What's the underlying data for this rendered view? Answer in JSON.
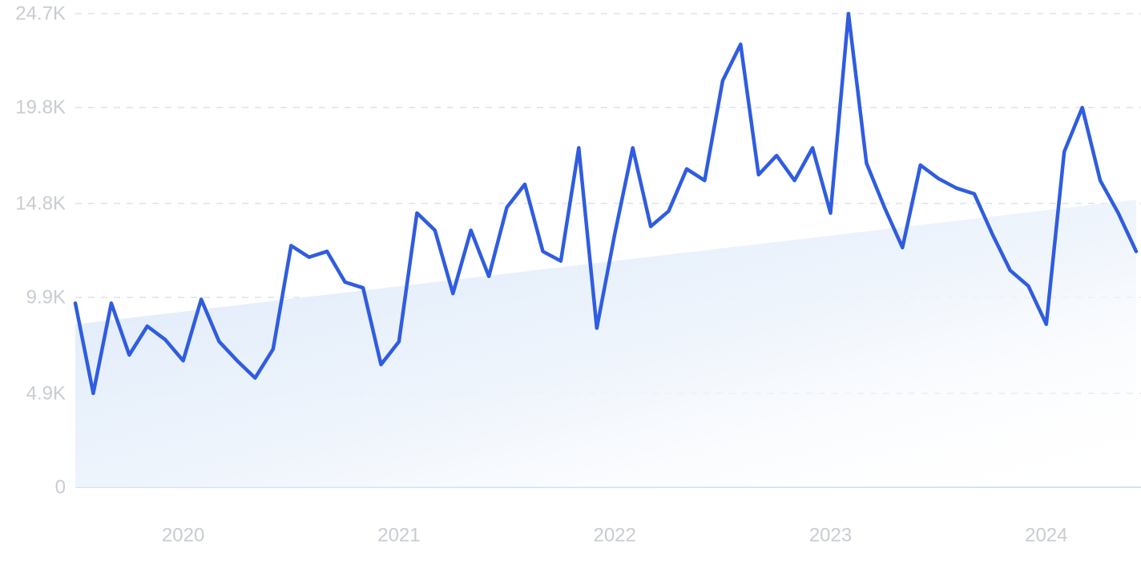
{
  "chart_data": {
    "type": "line",
    "title": "",
    "xlabel": "",
    "ylabel": "",
    "y_ticks": [
      {
        "value": 0,
        "label": "0"
      },
      {
        "value": 4900,
        "label": "4.9K"
      },
      {
        "value": 9900,
        "label": "9.9K"
      },
      {
        "value": 14800,
        "label": "14.8K"
      },
      {
        "value": 19800,
        "label": "19.8K"
      },
      {
        "value": 24700,
        "label": "24.7K"
      }
    ],
    "x_ticks": [
      {
        "value": "2020-01",
        "label": "2020"
      },
      {
        "value": "2021-01",
        "label": "2021"
      },
      {
        "value": "2022-01",
        "label": "2022"
      },
      {
        "value": "2023-01",
        "label": "2023"
      },
      {
        "value": "2024-01",
        "label": "2024"
      }
    ],
    "ylim": [
      0,
      24700
    ],
    "xlim": [
      "2019-07",
      "2024-07"
    ],
    "grid": true,
    "legend": "none",
    "colors": {
      "line": "#2f5ce0",
      "trend_fill": "#dbe8f9"
    },
    "trend": {
      "start": 8500,
      "end": 15000
    },
    "series": [
      {
        "name": "",
        "x": [
          "2019-07",
          "2019-08",
          "2019-09",
          "2019-10",
          "2019-11",
          "2019-12",
          "2020-01",
          "2020-02",
          "2020-03",
          "2020-04",
          "2020-05",
          "2020-06",
          "2020-07",
          "2020-08",
          "2020-09",
          "2020-10",
          "2020-11",
          "2020-12",
          "2021-01",
          "2021-02",
          "2021-03",
          "2021-04",
          "2021-05",
          "2021-06",
          "2021-07",
          "2021-08",
          "2021-09",
          "2021-10",
          "2021-11",
          "2021-12",
          "2022-01",
          "2022-02",
          "2022-03",
          "2022-04",
          "2022-05",
          "2022-06",
          "2022-07",
          "2022-08",
          "2022-09",
          "2022-10",
          "2022-11",
          "2022-12",
          "2023-01",
          "2023-02",
          "2023-03",
          "2023-04",
          "2023-05",
          "2023-06",
          "2023-07",
          "2023-08",
          "2023-09",
          "2023-10",
          "2023-11",
          "2023-12",
          "2024-01",
          "2024-02",
          "2024-03",
          "2024-04",
          "2024-05",
          "2024-06"
        ],
        "values": [
          9600,
          4900,
          9600,
          6900,
          8400,
          7700,
          6600,
          9800,
          7600,
          6600,
          5700,
          7200,
          12600,
          12000,
          12300,
          10700,
          10400,
          6400,
          7600,
          14300,
          13400,
          10100,
          13400,
          11000,
          14600,
          15800,
          12300,
          11800,
          17700,
          8300,
          13200,
          17700,
          13600,
          14400,
          16600,
          16000,
          21200,
          23100,
          16300,
          17300,
          16000,
          17700,
          14300,
          24700,
          16900,
          14600,
          12500,
          16800,
          16100,
          15600,
          15300,
          13200,
          11300,
          10500,
          8500,
          17500,
          19800,
          16000,
          14300,
          12300
        ]
      }
    ]
  }
}
